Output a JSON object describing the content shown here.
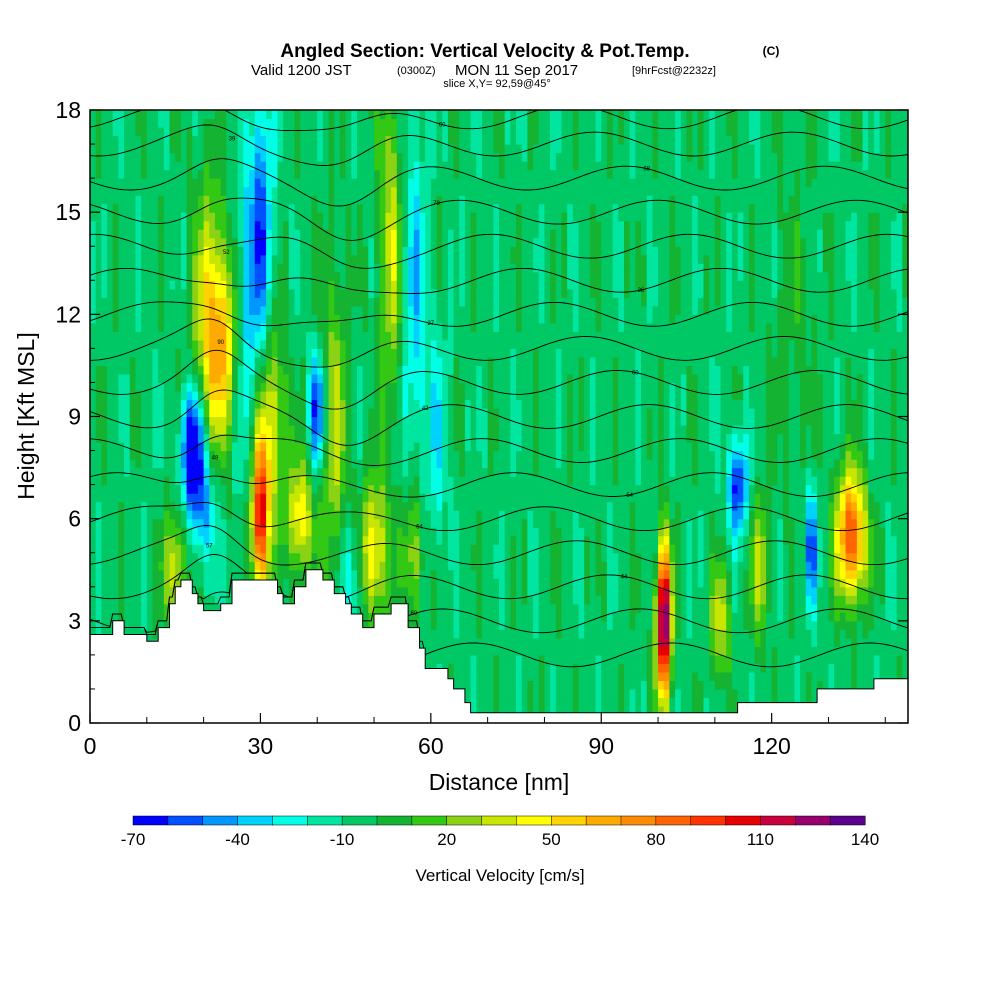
{
  "chart_data": {
    "type": "heatmap",
    "title": "Angled Section: Vertical Velocity & Pot.Temp.",
    "title_units": "(C)",
    "subtitle_prefix": "Valid 1200 JST",
    "subtitle_z": "(0300Z)",
    "subtitle_date": "MON 11 Sep 2017",
    "subtitle_fcst": "[9hrFcst@2232z]",
    "slice_label": "slice X,Y= 92,59@45°",
    "xlabel": "Distance [nm]",
    "ylabel": "Height [Kft MSL]",
    "xlim": [
      0,
      144
    ],
    "ylim": [
      0,
      18
    ],
    "x_ticks": [
      "0",
      "30",
      "60",
      "90",
      "120"
    ],
    "x_tick_values": [
      0,
      30,
      60,
      90,
      120
    ],
    "y_ticks": [
      "0",
      "3",
      "6",
      "9",
      "12",
      "15",
      "18"
    ],
    "y_tick_values": [
      0,
      3,
      6,
      9,
      12,
      15,
      18
    ],
    "colorbar": {
      "label": "Vertical Velocity [cm/s]",
      "tick_labels": [
        "-70",
        "-40",
        "-10",
        "20",
        "50",
        "80",
        "110",
        "140"
      ],
      "min": -70,
      "max": 140,
      "colors": [
        "#0000ff",
        "#0050ff",
        "#0096ff",
        "#00d2ff",
        "#00ffe6",
        "#00e6a0",
        "#00c864",
        "#14b432",
        "#32c814",
        "#8cd214",
        "#c8e600",
        "#ffff00",
        "#ffd200",
        "#ffaa00",
        "#ff8c00",
        "#ff6400",
        "#ff3200",
        "#e60000",
        "#c8003c",
        "#96006e",
        "#5a008c"
      ]
    },
    "background_value": -5,
    "velocity_cells": [
      {
        "x": 18,
        "y": 8.0,
        "sx": 1.4,
        "sy": 1.2,
        "v": -80
      },
      {
        "x": 20,
        "y": 6.2,
        "sx": 1.5,
        "sy": 1.2,
        "v": -35
      },
      {
        "x": 23,
        "y": 11.0,
        "sx": 2.5,
        "sy": 2.0,
        "v": 60
      },
      {
        "x": 21,
        "y": 13.0,
        "sx": 2.0,
        "sy": 2.5,
        "v": 30
      },
      {
        "x": 15,
        "y": 4.5,
        "sx": 1.5,
        "sy": 1.2,
        "v": 45
      },
      {
        "x": 27,
        "y": 11.5,
        "sx": 1.5,
        "sy": 3.0,
        "v": -30
      },
      {
        "x": 30,
        "y": 6.0,
        "sx": 1.1,
        "sy": 1.6,
        "v": 110
      },
      {
        "x": 32,
        "y": 9.0,
        "sx": 1.8,
        "sy": 2.0,
        "v": 45
      },
      {
        "x": 30,
        "y": 14.5,
        "sx": 1.5,
        "sy": 3.0,
        "v": -50
      },
      {
        "x": 37,
        "y": 6.0,
        "sx": 1.5,
        "sy": 1.2,
        "v": 55
      },
      {
        "x": 40,
        "y": 9.2,
        "sx": 1.0,
        "sy": 1.2,
        "v": -60
      },
      {
        "x": 43,
        "y": 8.5,
        "sx": 1.8,
        "sy": 3.5,
        "v": 35
      },
      {
        "x": 46,
        "y": 4.0,
        "sx": 1.5,
        "sy": 1.5,
        "v": -30
      },
      {
        "x": 50,
        "y": 5.0,
        "sx": 1.8,
        "sy": 1.5,
        "v": 55
      },
      {
        "x": 53,
        "y": 14.0,
        "sx": 1.5,
        "sy": 3.5,
        "v": 40
      },
      {
        "x": 57,
        "y": 12.5,
        "sx": 1.5,
        "sy": 4.0,
        "v": -30
      },
      {
        "x": 57,
        "y": 5.0,
        "sx": 1.2,
        "sy": 1.5,
        "v": 40
      },
      {
        "x": 61,
        "y": 8.5,
        "sx": 1.5,
        "sy": 2.5,
        "v": -20
      },
      {
        "x": 101,
        "y": 3.0,
        "sx": 0.9,
        "sy": 1.6,
        "v": 150
      },
      {
        "x": 114,
        "y": 7.0,
        "sx": 1.2,
        "sy": 1.0,
        "v": -60
      },
      {
        "x": 111,
        "y": 3.0,
        "sx": 1.2,
        "sy": 1.2,
        "v": 40
      },
      {
        "x": 118,
        "y": 4.5,
        "sx": 1.2,
        "sy": 1.5,
        "v": 35
      },
      {
        "x": 127,
        "y": 5.2,
        "sx": 0.8,
        "sy": 1.2,
        "v": -50
      },
      {
        "x": 134,
        "y": 5.5,
        "sx": 1.8,
        "sy": 1.3,
        "v": 100
      },
      {
        "x": 124,
        "y": 12.0,
        "sx": 3.0,
        "sy": 3.0,
        "v": 10
      }
    ],
    "terrain": [
      {
        "x": 0,
        "h": 2.6
      },
      {
        "x": 4,
        "h": 3.0
      },
      {
        "x": 6,
        "h": 2.6
      },
      {
        "x": 10,
        "h": 2.4
      },
      {
        "x": 12,
        "h": 2.8
      },
      {
        "x": 14,
        "h": 3.5
      },
      {
        "x": 15,
        "h": 4.0
      },
      {
        "x": 16,
        "h": 4.2
      },
      {
        "x": 18,
        "h": 3.8
      },
      {
        "x": 19,
        "h": 3.5
      },
      {
        "x": 20,
        "h": 3.3
      },
      {
        "x": 23,
        "h": 3.5
      },
      {
        "x": 25,
        "h": 4.2
      },
      {
        "x": 30,
        "h": 4.2
      },
      {
        "x": 33,
        "h": 3.8
      },
      {
        "x": 34,
        "h": 3.5
      },
      {
        "x": 36,
        "h": 4.0
      },
      {
        "x": 38,
        "h": 4.5
      },
      {
        "x": 41,
        "h": 4.2
      },
      {
        "x": 43,
        "h": 3.8
      },
      {
        "x": 45,
        "h": 3.5
      },
      {
        "x": 46,
        "h": 3.2
      },
      {
        "x": 48,
        "h": 2.8
      },
      {
        "x": 50,
        "h": 3.2
      },
      {
        "x": 53,
        "h": 3.5
      },
      {
        "x": 56,
        "h": 2.8
      },
      {
        "x": 58,
        "h": 2.2
      },
      {
        "x": 59,
        "h": 1.6
      },
      {
        "x": 63,
        "h": 1.3
      },
      {
        "x": 64,
        "h": 1.0
      },
      {
        "x": 66,
        "h": 0.6
      },
      {
        "x": 67,
        "h": 0.3
      },
      {
        "x": 114,
        "h": 0.6
      },
      {
        "x": 128,
        "h": 1.0
      },
      {
        "x": 138,
        "h": 1.3
      },
      {
        "x": 144,
        "h": 1.3
      }
    ],
    "isentrope_levels": [
      2,
      3,
      4,
      5,
      6,
      7,
      8,
      9,
      10,
      11,
      12,
      13,
      14,
      15,
      16,
      17,
      17.8
    ],
    "isentrope_labels": [
      "39",
      "60",
      "44",
      "57",
      "64",
      "54",
      "48",
      "42",
      "60",
      "90",
      "27",
      "36",
      "52",
      "79",
      "68"
    ]
  }
}
